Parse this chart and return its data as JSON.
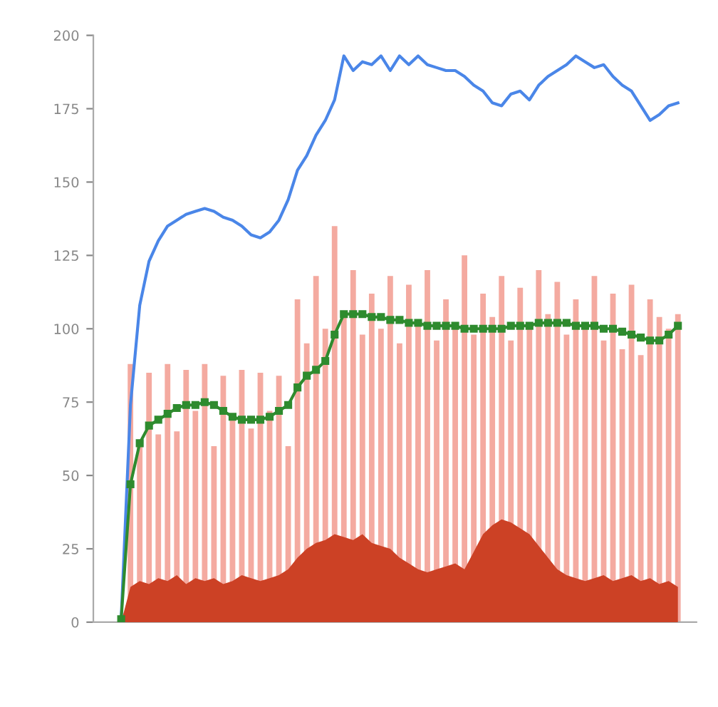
{
  "chart_data": {
    "type": "line",
    "categories": [
      null,
      null,
      null,
      null,
      null,
      null,
      null,
      null,
      null,
      null,
      null,
      null,
      null,
      null,
      null,
      null,
      null,
      null,
      null,
      null,
      null,
      null,
      null,
      null,
      null,
      null,
      null,
      null,
      null,
      null,
      null,
      null,
      null,
      null,
      null,
      null,
      null,
      null,
      null,
      null,
      null,
      null,
      null,
      null,
      null,
      null,
      null,
      null,
      null,
      null,
      null,
      null,
      null,
      null,
      null,
      null,
      null,
      null,
      null,
      null,
      null
    ],
    "series": [
      {
        "type": "bar",
        "color": "#f4aaa0",
        "values": [
          0,
          88,
          60,
          85,
          64,
          88,
          65,
          86,
          72,
          88,
          60,
          84,
          70,
          86,
          66,
          85,
          72,
          84,
          60,
          110,
          95,
          118,
          100,
          135,
          105,
          120,
          98,
          112,
          100,
          118,
          95,
          115,
          102,
          120,
          96,
          110,
          100,
          125,
          98,
          112,
          104,
          118,
          96,
          114,
          100,
          120,
          105,
          116,
          98,
          110,
          100,
          118,
          96,
          112,
          93,
          115,
          91,
          110,
          104,
          100,
          105
        ]
      },
      {
        "type": "area",
        "color": "#cc4125",
        "values": [
          0,
          12,
          14,
          13,
          15,
          14,
          16,
          13,
          15,
          14,
          15,
          13,
          14,
          16,
          15,
          14,
          15,
          16,
          18,
          22,
          25,
          27,
          28,
          30,
          29,
          28,
          30,
          27,
          26,
          25,
          22,
          20,
          18,
          17,
          18,
          19,
          20,
          18,
          24,
          30,
          33,
          35,
          34,
          32,
          30,
          26,
          22,
          18,
          16,
          15,
          14,
          15,
          16,
          14,
          15,
          16,
          14,
          15,
          13,
          14,
          12
        ]
      },
      {
        "color": "#4a86e8",
        "marker": "none",
        "values": [
          1,
          74,
          108,
          123,
          130,
          135,
          137,
          139,
          140,
          141,
          140,
          138,
          137,
          135,
          132,
          131,
          133,
          137,
          144,
          154,
          159,
          166,
          171,
          178,
          193,
          188,
          191,
          190,
          193,
          188,
          193,
          190,
          193,
          190,
          189,
          188,
          188,
          186,
          183,
          181,
          177,
          176,
          180,
          181,
          178,
          183,
          186,
          188,
          190,
          193,
          191,
          189,
          190,
          186,
          183,
          181,
          176,
          171,
          173,
          176,
          177
        ]
      },
      {
        "color": "#2e8b2e",
        "marker": "square",
        "values": [
          1,
          47,
          61,
          67,
          69,
          71,
          73,
          74,
          74,
          75,
          74,
          72,
          70,
          69,
          69,
          69,
          70,
          72,
          74,
          80,
          84,
          86,
          89,
          98,
          105,
          105,
          105,
          104,
          104,
          103,
          103,
          102,
          102,
          101,
          101,
          101,
          101,
          100,
          100,
          100,
          100,
          100,
          101,
          101,
          101,
          102,
          102,
          102,
          102,
          101,
          101,
          101,
          100,
          100,
          99,
          98,
          97,
          96,
          96,
          98,
          101
        ]
      }
    ],
    "ylim": [
      0,
      200
    ],
    "yticks": [
      0,
      25,
      50,
      75,
      100,
      125,
      150,
      175,
      200
    ],
    "tick_labels": "y",
    "grid": false
  }
}
